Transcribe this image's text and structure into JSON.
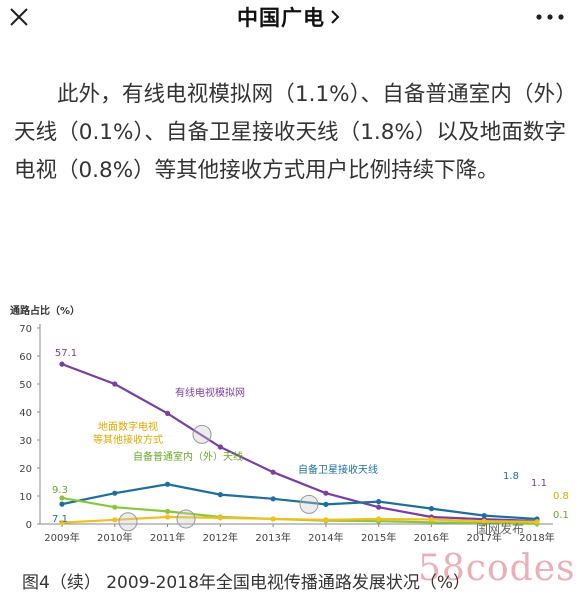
{
  "header": {
    "title": "中国广电",
    "close_icon": "close-icon",
    "chevron_icon": "chevron-right-icon",
    "more_icon": "more-icon"
  },
  "article": {
    "paragraph": "此外，有线电视模拟网（1.1%）、自备普通室内（外）天线（0.1%）、自备卫星接收天线（1.8%）以及地面数字电视（0.8%）等其他接收方式用户比例持续下降。"
  },
  "chart_data": {
    "type": "line",
    "title": "",
    "ylabel": "通路占比（%）",
    "xlabel": "",
    "ylim": [
      0,
      70
    ],
    "yticks": [
      "0",
      "10",
      "20",
      "30",
      "40",
      "50",
      "60",
      "70"
    ],
    "categories": [
      "2009年",
      "2010年",
      "2011年",
      "2012年",
      "2013年",
      "2014年",
      "2015年",
      "2016年",
      "2017年",
      "2018年"
    ],
    "series": [
      {
        "name": "有线电视模拟网",
        "color": "#7a3fa0",
        "values": [
          57.1,
          50,
          39.5,
          27.5,
          18.5,
          11,
          6,
          2.5,
          1.7,
          1.1
        ]
      },
      {
        "name": "自备卫星接收天线",
        "color": "#1f6f9e",
        "values": [
          7.1,
          11,
          14.2,
          10.5,
          9,
          7,
          8,
          5.5,
          3,
          1.8
        ]
      },
      {
        "name": "自备普通室内（外）天线",
        "color": "#8cc63f",
        "values": [
          9.3,
          6,
          4.5,
          2.5,
          1.8,
          1.2,
          1,
          0.6,
          0.3,
          0.1
        ]
      },
      {
        "name": "地面数字电视\n等其他接收方式",
        "color": "#f0c020",
        "values": [
          0.5,
          1.5,
          2.5,
          2.2,
          1.8,
          1.5,
          1.8,
          1.6,
          1,
          0.8
        ]
      }
    ],
    "annotations": {
      "start": [
        "57.1",
        "9.3",
        "7.1"
      ],
      "end": [
        "1.8",
        "1.1",
        "0.8",
        "0.1"
      ]
    },
    "grid": false,
    "legend": "inline labels"
  },
  "chart_source": "国网发布",
  "caption": "图4（续） 2009-2018年全国电视传播通路发展状况（%）",
  "watermark": "58codes"
}
